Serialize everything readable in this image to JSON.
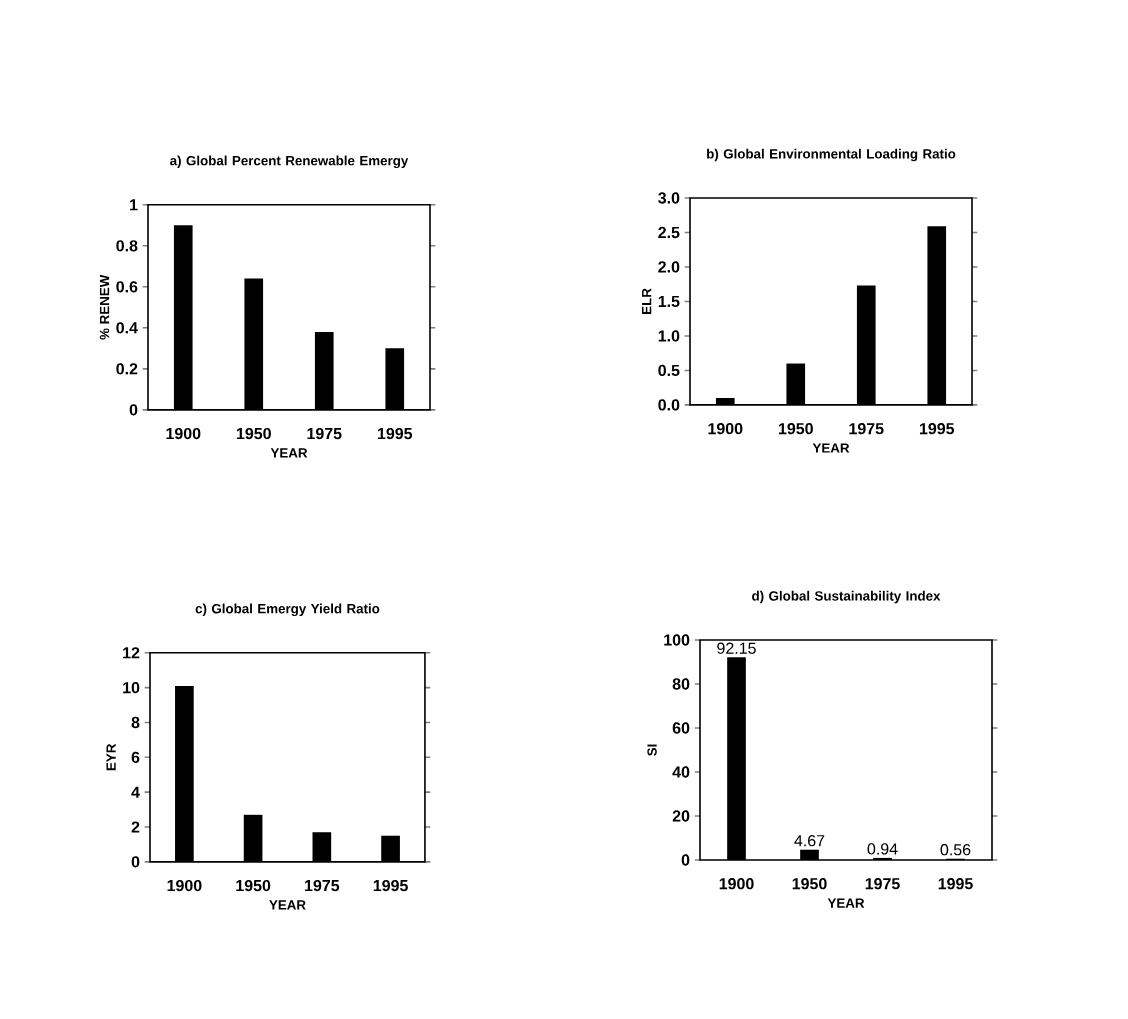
{
  "chart_data": [
    {
      "type": "bar",
      "title": "a)  Global Percent Renewable Emergy",
      "xlabel": "YEAR",
      "ylabel": "% RENEW",
      "categories": [
        "1900",
        "1950",
        "1975",
        "1995"
      ],
      "values": [
        0.9,
        0.64,
        0.38,
        0.3
      ],
      "color": "#000000",
      "ylim": [
        0,
        1
      ],
      "yticks": [
        0,
        0.2,
        0.4,
        0.6,
        0.8,
        1
      ]
    },
    {
      "type": "bar",
      "title": "b)    Global Environmental Loading Ratio",
      "xlabel": "YEAR",
      "ylabel": "ELR",
      "categories": [
        "1900",
        "1950",
        "1975",
        "1995"
      ],
      "values": [
        0.1,
        0.6,
        1.73,
        2.59
      ],
      "color": "#000000",
      "ylim": [
        0,
        3
      ],
      "yticks": [
        {
          "value": 0,
          "label": "0.0"
        },
        0.5,
        {
          "value": 1,
          "label": "1.0"
        },
        1.5,
        {
          "value": 2,
          "label": "2.0"
        },
        2.5,
        {
          "value": 3,
          "label": "3.0"
        }
      ]
    },
    {
      "type": "bar",
      "title": "c)    Global Emergy Yield Ratio",
      "xlabel": "YEAR",
      "ylabel": "EYR",
      "categories": [
        "1900",
        "1950",
        "1975",
        "1995"
      ],
      "values": [
        10.1,
        2.7,
        1.7,
        1.5
      ],
      "color": "#000000",
      "ylim": [
        0,
        12
      ],
      "yticks": [
        0,
        2,
        4,
        6,
        8,
        10,
        12
      ]
    },
    {
      "type": "bar",
      "title": "d)    Global Sustainability Index",
      "xlabel": "YEAR",
      "ylabel": "SI",
      "categories": [
        "1900",
        "1950",
        "1975",
        "1995"
      ],
      "values": [
        92.15,
        4.67,
        0.94,
        0.56
      ],
      "color": "#000000",
      "ylim": [
        0,
        100
      ],
      "yticks": [
        0,
        20,
        40,
        60,
        80,
        100
      ],
      "data_labels": true
    }
  ]
}
